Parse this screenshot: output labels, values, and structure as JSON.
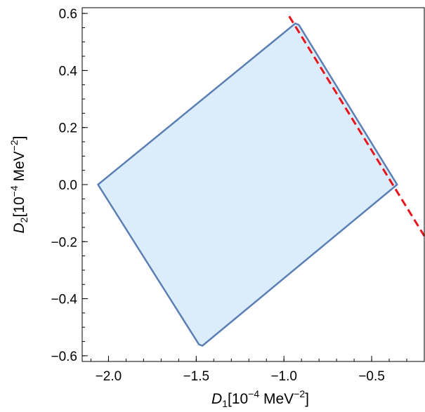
{
  "chart_data": {
    "type": "area",
    "xlabel": {
      "base": "D",
      "sub": "1",
      "pre": "[10",
      "exp1": "−4",
      "mid": " MeV",
      "exp2": "−2",
      "post": "]"
    },
    "ylabel": {
      "base": "D",
      "sub": "2",
      "pre": "[10",
      "exp1": "−4",
      "mid": " MeV",
      "exp2": "−2",
      "post": "]"
    },
    "xlim": [
      -2.15,
      -0.2
    ],
    "ylim": [
      -0.62,
      0.62
    ],
    "x_ticks": [
      {
        "value": -2.0,
        "label": "−2.0"
      },
      {
        "value": -1.5,
        "label": "−1.5"
      },
      {
        "value": -1.0,
        "label": "−1.0"
      },
      {
        "value": -0.5,
        "label": "−0.5"
      }
    ],
    "y_ticks": [
      {
        "value": 0.6,
        "label": "0.6"
      },
      {
        "value": 0.4,
        "label": "0.4"
      },
      {
        "value": 0.2,
        "label": "0.2"
      },
      {
        "value": 0.0,
        "label": "0.0"
      },
      {
        "value": -0.2,
        "label": "−0.2"
      },
      {
        "value": -0.4,
        "label": "−0.4"
      },
      {
        "value": -0.6,
        "label": "−0.6"
      }
    ],
    "x_minor_step": 0.1,
    "y_minor_step": 0.05,
    "grid": false,
    "legend": "none",
    "region": {
      "points": [
        [
          -2.06,
          0.0
        ],
        [
          -0.935,
          0.565
        ],
        [
          -0.915,
          0.56
        ],
        [
          -0.355,
          0.0
        ],
        [
          -1.465,
          -0.565
        ],
        [
          -1.485,
          -0.56
        ]
      ],
      "fill": "#dbecfb",
      "stroke": "#5b7fb5"
    },
    "boundary_line": {
      "points": [
        [
          -0.97,
          0.59
        ],
        [
          -0.2,
          -0.18
        ]
      ],
      "color": "#e8141c",
      "style": "dashed"
    }
  }
}
